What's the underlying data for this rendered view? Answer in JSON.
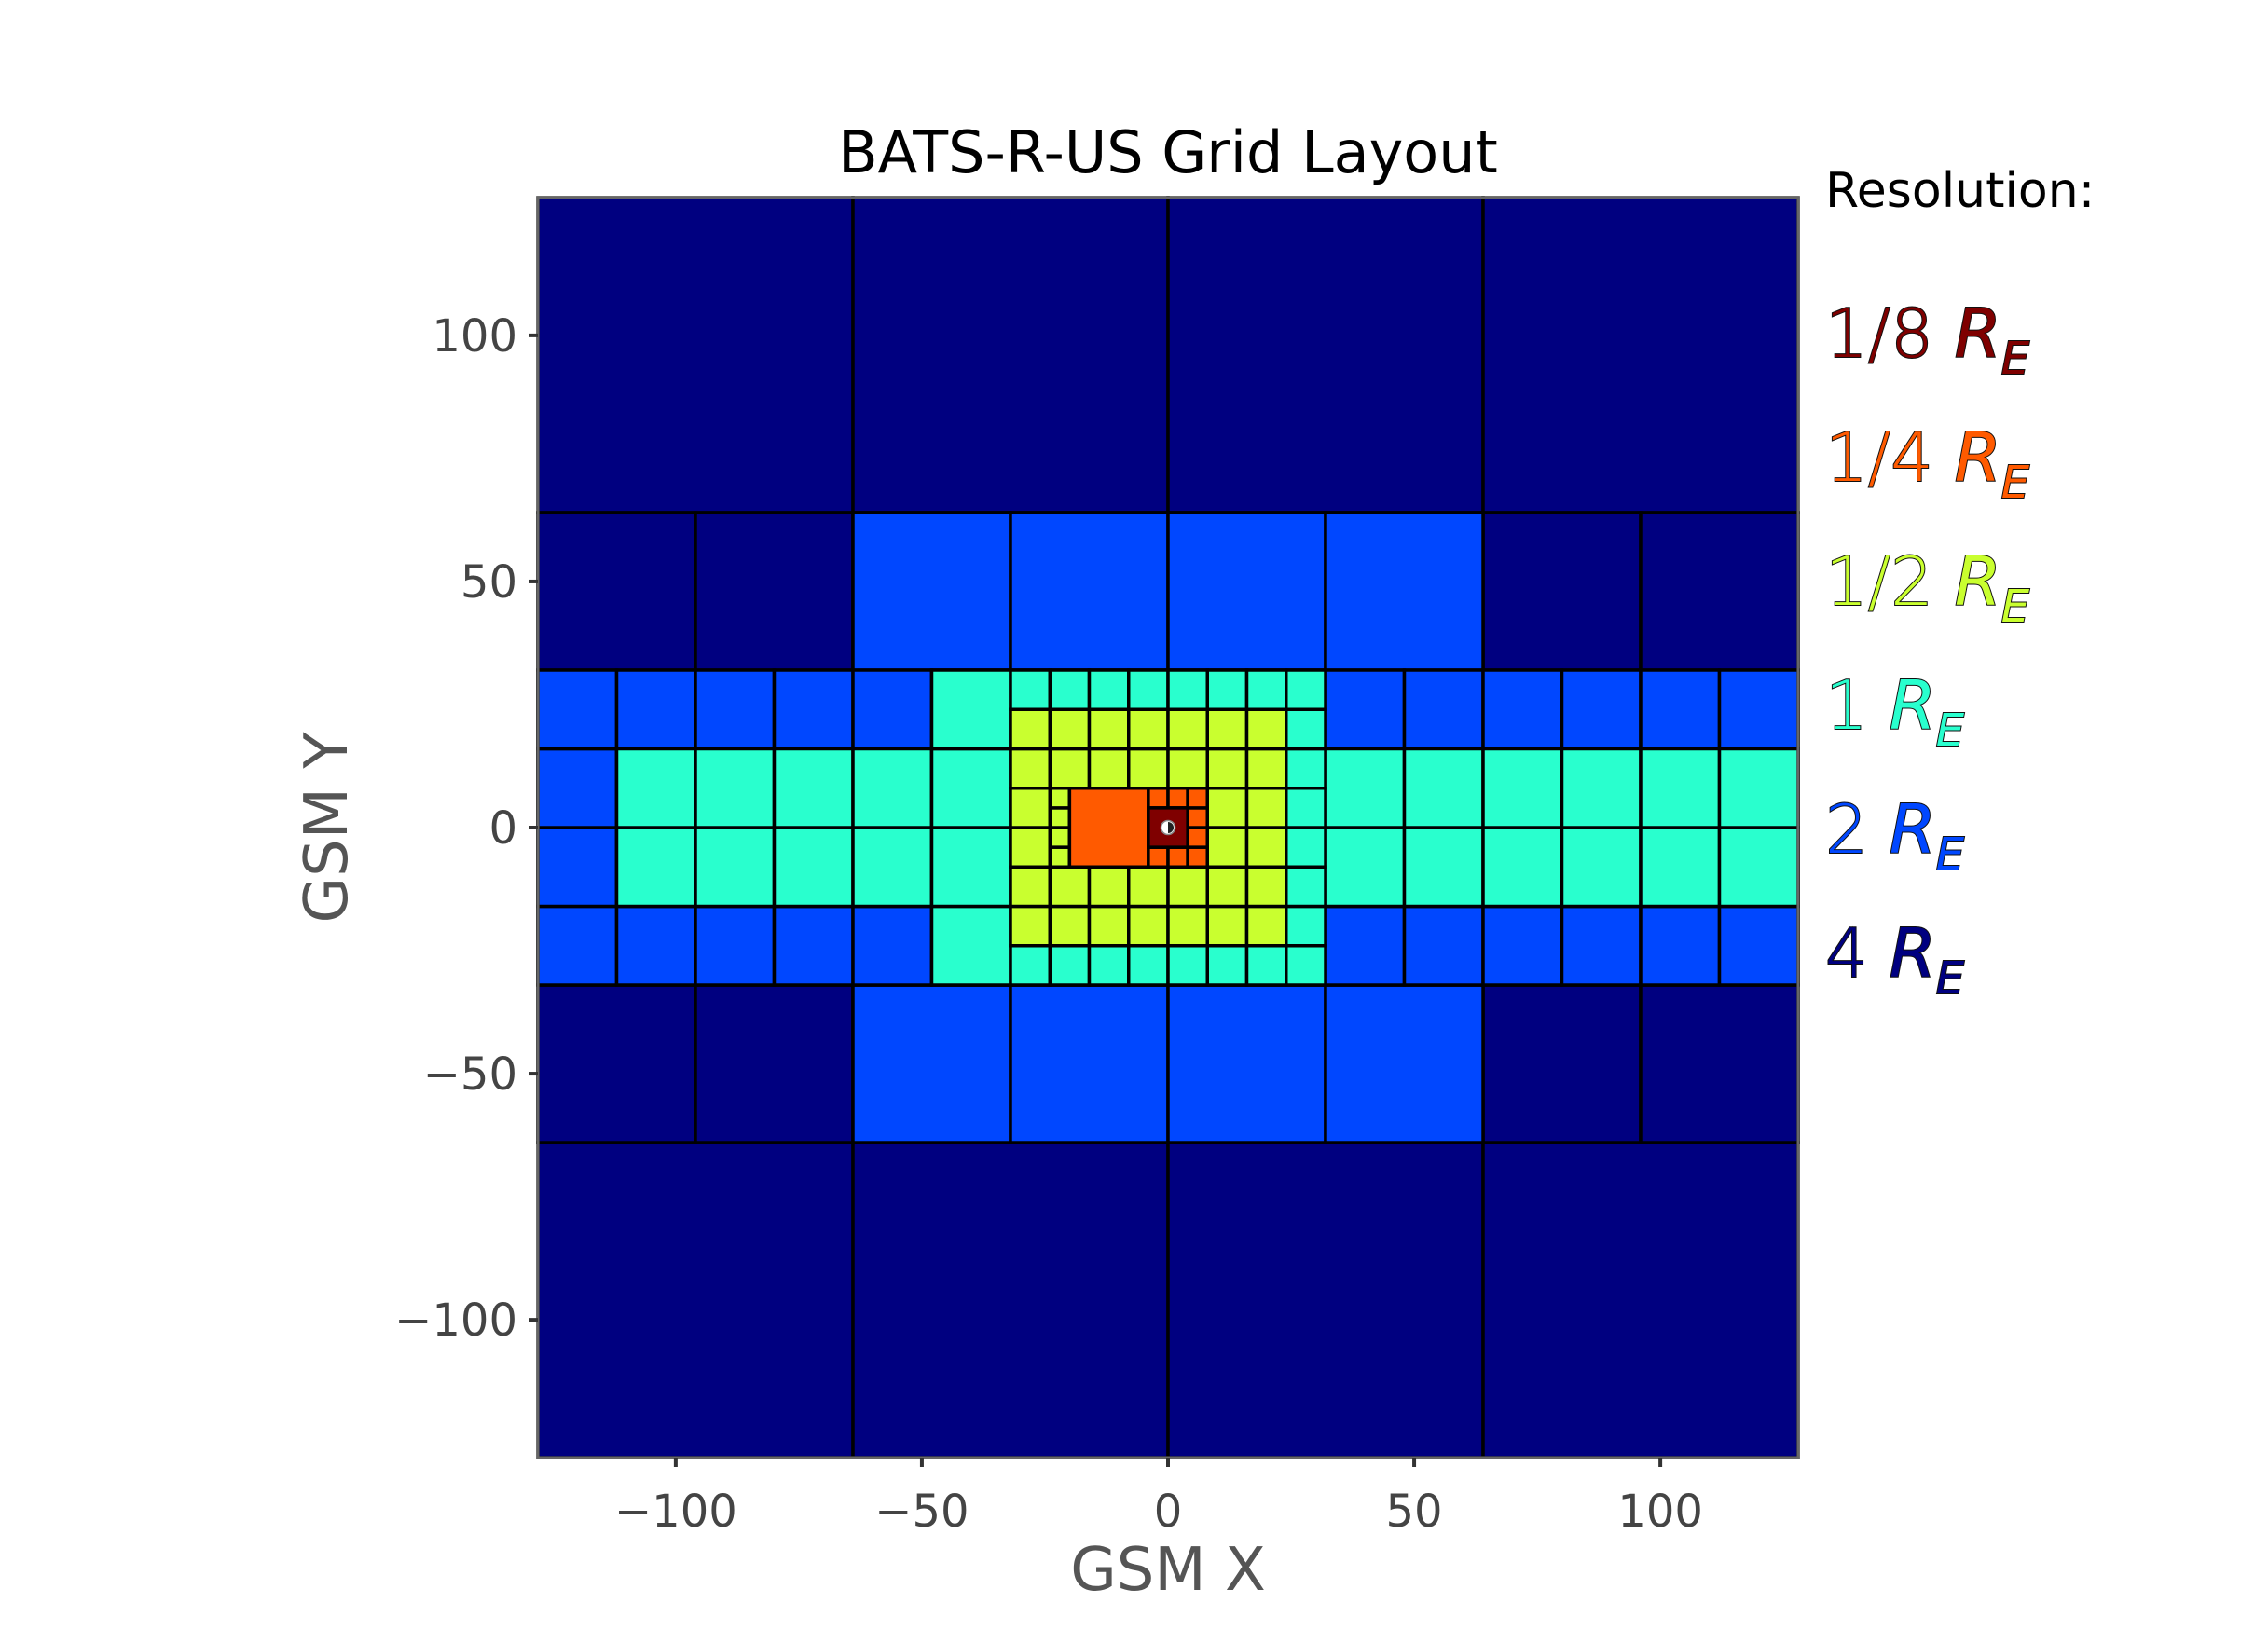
{
  "chart_data": {
    "type": "heatmap",
    "title": "BATS-R-US Grid Layout",
    "xlabel": "GSM X",
    "ylabel": "GSM Y",
    "xlim": [
      -128,
      128
    ],
    "ylim": [
      -128,
      128
    ],
    "xticks": [
      -100,
      -50,
      0,
      50,
      100
    ],
    "yticks": [
      -100,
      -50,
      0,
      50,
      100
    ],
    "xtick_labels": [
      "−100",
      "−50",
      "0",
      "50",
      "100"
    ],
    "ytick_labels": [
      "−100",
      "−50",
      "0",
      "50",
      "100"
    ],
    "grid": false,
    "legend_title": "Resolution:",
    "legend_placement": "right",
    "resolutions": [
      {
        "frac": "1/8",
        "main": "R",
        "sub": "E",
        "size": 0.125,
        "color": "#7f0000",
        "bold": true
      },
      {
        "frac": "1/4",
        "main": "R",
        "sub": "E",
        "size": 0.25,
        "color": "#ff5a00",
        "bold": false
      },
      {
        "frac": "1/2",
        "main": "R",
        "sub": "E",
        "size": 0.5,
        "color": "#c9ff2f",
        "bold": false
      },
      {
        "frac": "1",
        "main": "R",
        "sub": "E",
        "size": 1,
        "color": "#29ffce",
        "bold": false
      },
      {
        "frac": "2",
        "main": "R",
        "sub": "E",
        "size": 2,
        "color": "#0047ff",
        "bold": false
      },
      {
        "frac": "4",
        "main": "R",
        "sub": "E",
        "size": 4,
        "color": "#000080",
        "bold": true
      }
    ],
    "blocks": [
      {
        "x0": -128,
        "x1": 128,
        "y0": -128,
        "y1": 128,
        "bs": 64,
        "level": "4"
      },
      {
        "x0": -128,
        "x1": 128,
        "y0": -64,
        "y1": 64,
        "bs": 32,
        "level": "4"
      },
      {
        "x0": -64,
        "x1": 64,
        "y0": -64,
        "y1": 64,
        "bs": 32,
        "level": "2"
      },
      {
        "x0": -128,
        "x1": 128,
        "y0": -32,
        "y1": 32,
        "bs": 16,
        "level": "2"
      },
      {
        "x0": -112,
        "x1": 128,
        "y0": -16,
        "y1": 16,
        "bs": 16,
        "level": "1"
      },
      {
        "x0": -48,
        "x1": -32,
        "y0": -32,
        "y1": 32,
        "bs": 16,
        "level": "1"
      },
      {
        "x0": -32,
        "x1": 32,
        "y0": -32,
        "y1": 32,
        "bs": 8,
        "level": "1"
      },
      {
        "x0": -32,
        "x1": 24,
        "y0": -24,
        "y1": 24,
        "bs": 8,
        "level": "1/2"
      },
      {
        "x0": -24,
        "x1": 8,
        "y0": -8,
        "y1": 8,
        "bs": 4,
        "level": "1/2"
      },
      {
        "x0": -20,
        "x1": -4,
        "y0": -8,
        "y1": 8,
        "bs": 16,
        "level": "1/4"
      },
      {
        "x0": -4,
        "x1": 8,
        "y0": -8,
        "y1": 8,
        "bs": 4,
        "level": "1/4"
      },
      {
        "x0": -4,
        "x1": 4,
        "y0": -4,
        "y1": 4,
        "bs": 8,
        "level": "1/8"
      }
    ]
  }
}
